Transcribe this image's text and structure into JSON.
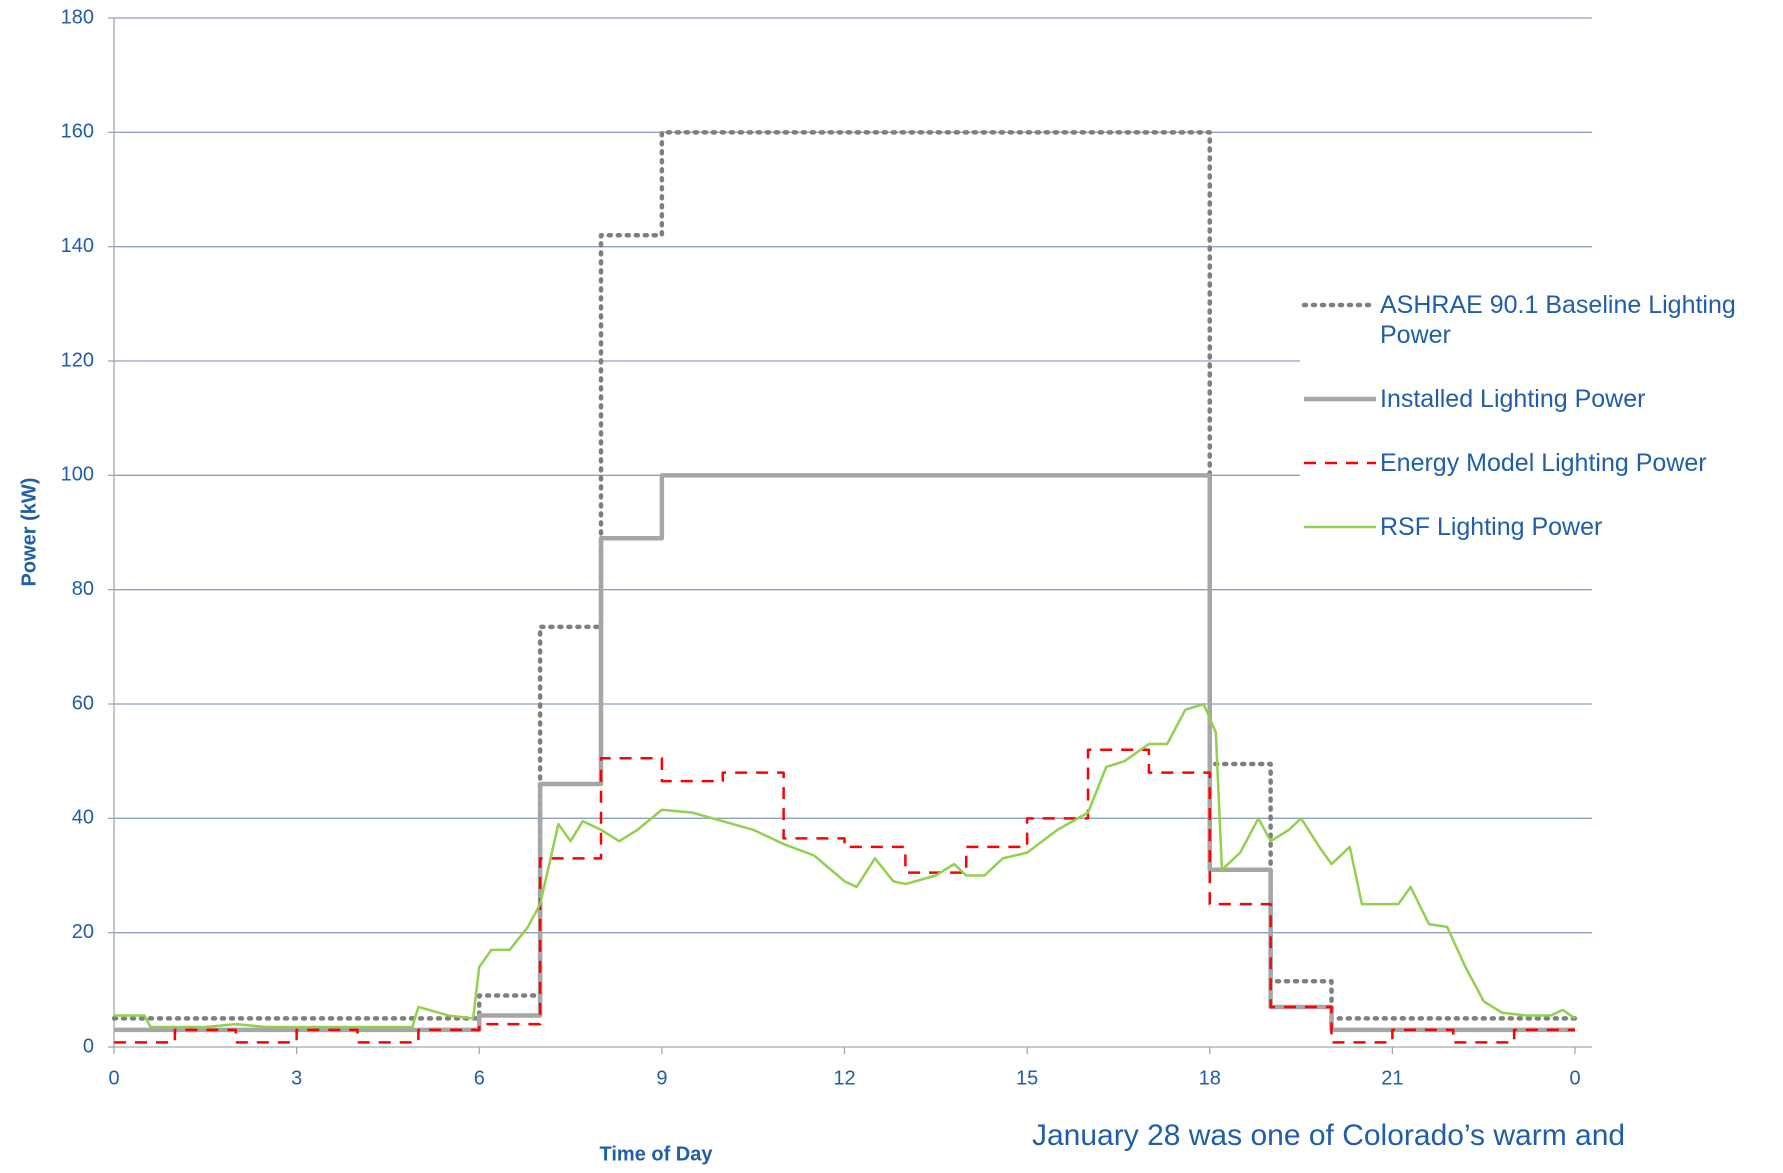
{
  "chart_data": {
    "type": "line",
    "xlabel": "Time of Day",
    "ylabel": "Power (kW)",
    "annotation": "January 28 was one of Colorado’s warm and",
    "xlim": [
      0,
      24
    ],
    "xticks": [
      0,
      3,
      6,
      9,
      12,
      15,
      18,
      21,
      {
        "value": 24,
        "label": "0"
      }
    ],
    "ylim": [
      0,
      180
    ],
    "yticks": [
      0,
      20,
      40,
      60,
      80,
      100,
      120,
      140,
      160,
      180
    ],
    "grid": true,
    "legend": "right",
    "series": [
      {
        "name": "ASHRAE 90.1 Baseline Lighting Power",
        "color": "#7f7f7f",
        "line_style": "dotted",
        "step": true,
        "x": [
          0,
          6,
          7,
          8,
          9,
          18,
          19,
          20,
          24
        ],
        "values": [
          5,
          9,
          73.5,
          142,
          160,
          49.5,
          11.5,
          5,
          5
        ]
      },
      {
        "name": "Installed Lighting Power",
        "color": "#a6a6a6",
        "line_style": "solid",
        "step": true,
        "x": [
          0,
          6,
          7,
          8,
          9,
          18,
          19,
          20,
          24
        ],
        "values": [
          3,
          5.5,
          46,
          89,
          100,
          31,
          7,
          3,
          3
        ]
      },
      {
        "name": "Energy Model Lighting Power",
        "color": "#ff0000",
        "line_style": "dashed",
        "step": true,
        "x": [
          0,
          1,
          2,
          3,
          4,
          5,
          6,
          7,
          8,
          9,
          10,
          11,
          12,
          13,
          14,
          15,
          16,
          17,
          18,
          19,
          20,
          21,
          22,
          23,
          24
        ],
        "values": [
          0.8,
          3,
          0.8,
          3,
          0.8,
          3,
          4,
          33,
          50.5,
          46.5,
          48,
          36.5,
          35,
          30.5,
          35,
          40,
          52,
          48,
          25,
          7,
          0.8,
          3,
          0.8,
          3,
          3
        ]
      },
      {
        "name": "RSF Lighting Power",
        "color": "#92d050",
        "line_style": "solid",
        "step": false,
        "x": [
          0,
          0.5,
          0.6,
          1.5,
          2,
          2.5,
          3,
          4,
          4.9,
          5,
          5.5,
          5.9,
          6,
          6.2,
          6.5,
          6.8,
          7,
          7.3,
          7.5,
          7.7,
          8,
          8.3,
          8.6,
          9,
          9.5,
          10,
          10.5,
          11,
          11.5,
          12,
          12.2,
          12.5,
          12.8,
          13,
          13.5,
          13.8,
          14,
          14.3,
          14.6,
          15,
          15.5,
          16,
          16.3,
          16.6,
          17,
          17.3,
          17.6,
          17.9,
          18.1,
          18.2,
          18.5,
          18.8,
          19,
          19.3,
          19.5,
          19.8,
          20,
          20.3,
          20.5,
          20.8,
          21.1,
          21.3,
          21.6,
          21.9,
          22.2,
          22.5,
          22.8,
          23.2,
          23.6,
          23.8,
          24
        ],
        "values": [
          5.5,
          5.5,
          3.5,
          3.5,
          4,
          3.5,
          3.5,
          3.5,
          3.5,
          7,
          5.5,
          5,
          14,
          17,
          17,
          21,
          25,
          39,
          36,
          39.5,
          38,
          36,
          38,
          41.5,
          41,
          39.5,
          38,
          35.5,
          33.5,
          29,
          28,
          33,
          29,
          28.5,
          30,
          32,
          30,
          30,
          33,
          34,
          38,
          41,
          49,
          50,
          53,
          53,
          59,
          60,
          55,
          31,
          34,
          40,
          36,
          38,
          40,
          35,
          32,
          35,
          25,
          25,
          25,
          28,
          21.5,
          21,
          14,
          8,
          6,
          5.5,
          5.5,
          6.5,
          5
        ]
      }
    ]
  }
}
